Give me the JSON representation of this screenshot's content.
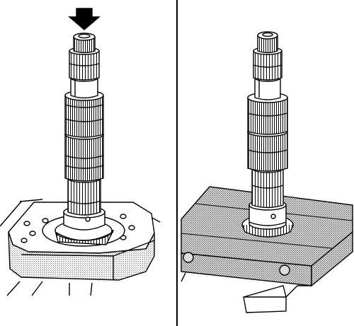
{
  "figure": {
    "panels": [
      {
        "id": "left",
        "subject": "shaft-on-press-plate",
        "arrow": "down"
      },
      {
        "id": "right",
        "subject": "shaft-on-wood-block",
        "arrow": "none"
      }
    ],
    "colors": {
      "line": "#000000",
      "hatch_light": "#c8c8c8",
      "hatch_dark": "#9a9a9a",
      "paper": "#ffffff"
    }
  }
}
